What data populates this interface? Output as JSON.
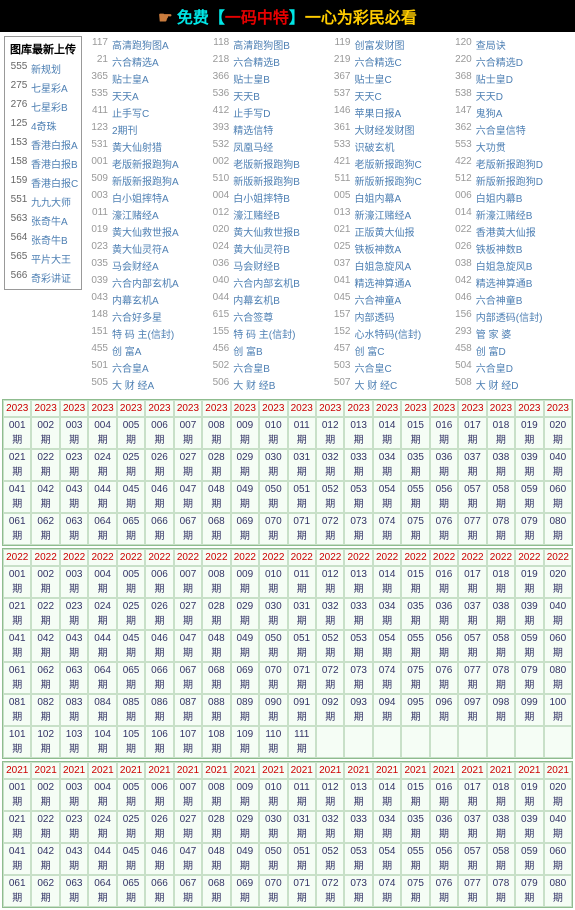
{
  "header": {
    "hand": "☛",
    "t1": "免费【",
    "mid": "一码中特",
    "t2": "】",
    "end": "一心为彩民必看"
  },
  "sidebar": {
    "title": "图库最新上传",
    "items": [
      {
        "n": "555",
        "t": "新规划"
      },
      {
        "n": "275",
        "t": "七星彩A"
      },
      {
        "n": "276",
        "t": "七星彩B"
      },
      {
        "n": "125",
        "t": "4奇珠"
      },
      {
        "n": "153",
        "t": "香港白报A"
      },
      {
        "n": "158",
        "t": "香港白报B"
      },
      {
        "n": "159",
        "t": "香港白报C"
      },
      {
        "n": "551",
        "t": "九九大师"
      },
      {
        "n": "563",
        "t": "张奇牛A"
      },
      {
        "n": "564",
        "t": "张奇牛B"
      },
      {
        "n": "565",
        "t": "平片大王"
      },
      {
        "n": "566",
        "t": "奇彩讲证"
      }
    ]
  },
  "links": [
    [
      "117",
      "高清跑狗图A",
      "118",
      "高清跑狗图B",
      "119",
      "创富发财图",
      "120",
      "查局诀"
    ],
    [
      "21",
      "六合精选A",
      "218",
      "六合精选B",
      "219",
      "六合精选C",
      "220",
      "六合精选D"
    ],
    [
      "365",
      "贴士皇A",
      "366",
      "贴士皇B",
      "367",
      "贴士皇C",
      "368",
      "贴士皇D"
    ],
    [
      "535",
      "天天A",
      "536",
      "天天B",
      "537",
      "天天C",
      "538",
      "天天D"
    ],
    [
      "411",
      "止手写C",
      "412",
      "止手写D",
      "146",
      "苹果日报A",
      "147",
      "鬼狗A"
    ],
    [
      "123",
      "2期刊",
      "393",
      "精选信特",
      "361",
      "大财经发财图",
      "362",
      "六合皇信特"
    ],
    [
      "531",
      "黄大仙射猎",
      "532",
      "凤凰马经",
      "533",
      "识破玄机",
      "553",
      "大功贯"
    ],
    [
      "001",
      "老版新报跑狗A",
      "002",
      "老版新报跑狗B",
      "421",
      "老版新报跑狗C",
      "422",
      "老版新报跑狗D"
    ],
    [
      "509",
      "新版新报跑狗A",
      "510",
      "新版新报跑狗B",
      "511",
      "新版新报跑狗C",
      "512",
      "新版新报跑狗D"
    ],
    [
      "003",
      "白小姐摔特A",
      "004",
      "白小姐摔特B",
      "005",
      "白姐内幕A",
      "006",
      "白姐内幕B"
    ],
    [
      "011",
      "濠江赌经A",
      "012",
      "濠江赌经B",
      "013",
      "新濠江赌经A",
      "014",
      "新濠江赌经B"
    ],
    [
      "019",
      "黄大仙救世报A",
      "020",
      "黄大仙救世报B",
      "021",
      "正版黄大仙报",
      "022",
      "香港黄大仙报"
    ],
    [
      "023",
      "黄大仙灵符A",
      "024",
      "黄大仙灵符B",
      "025",
      "铁板神数A",
      "026",
      "铁板神数B"
    ],
    [
      "035",
      "马会财经A",
      "036",
      "马会财经B",
      "037",
      "白姐急旋风A",
      "038",
      "白姐急旋风B"
    ],
    [
      "039",
      "六合内部玄机A",
      "040",
      "六合内部玄机B",
      "041",
      "精选神算通A",
      "042",
      "精选神算通B"
    ],
    [
      "043",
      "内幕玄机A",
      "044",
      "内幕玄机B",
      "045",
      "六合神童A",
      "046",
      "六合神童B"
    ],
    [
      "148",
      "六合好多星",
      "615",
      "六合签尊",
      "157",
      "内部透码",
      "156",
      "内部透码(信封)"
    ],
    [
      "151",
      "特 码 主(信封)",
      "155",
      "特 码 主(信封)",
      "152",
      "心水特码(信封)",
      "293",
      "管 家 婆"
    ],
    [
      "455",
      "创 富A",
      "456",
      "创 富B",
      "457",
      "创 富C",
      "458",
      "创 富D"
    ],
    [
      "501",
      "六合皇A",
      "502",
      "六合皇B",
      "503",
      "六合皇C",
      "504",
      "六合皇D"
    ],
    [
      "505",
      "大 财 经A",
      "506",
      "大 财 经B",
      "507",
      "大 财 经C",
      "508",
      "大 财 经D"
    ]
  ],
  "years": [
    {
      "y": "2023",
      "cols": 20,
      "rows": 4,
      "max": 80
    },
    {
      "y": "2022",
      "cols": 20,
      "rows": 6,
      "max": 111
    },
    {
      "y": "2021",
      "cols": 20,
      "rows": 4,
      "max": 80
    }
  ],
  "qi": "期"
}
